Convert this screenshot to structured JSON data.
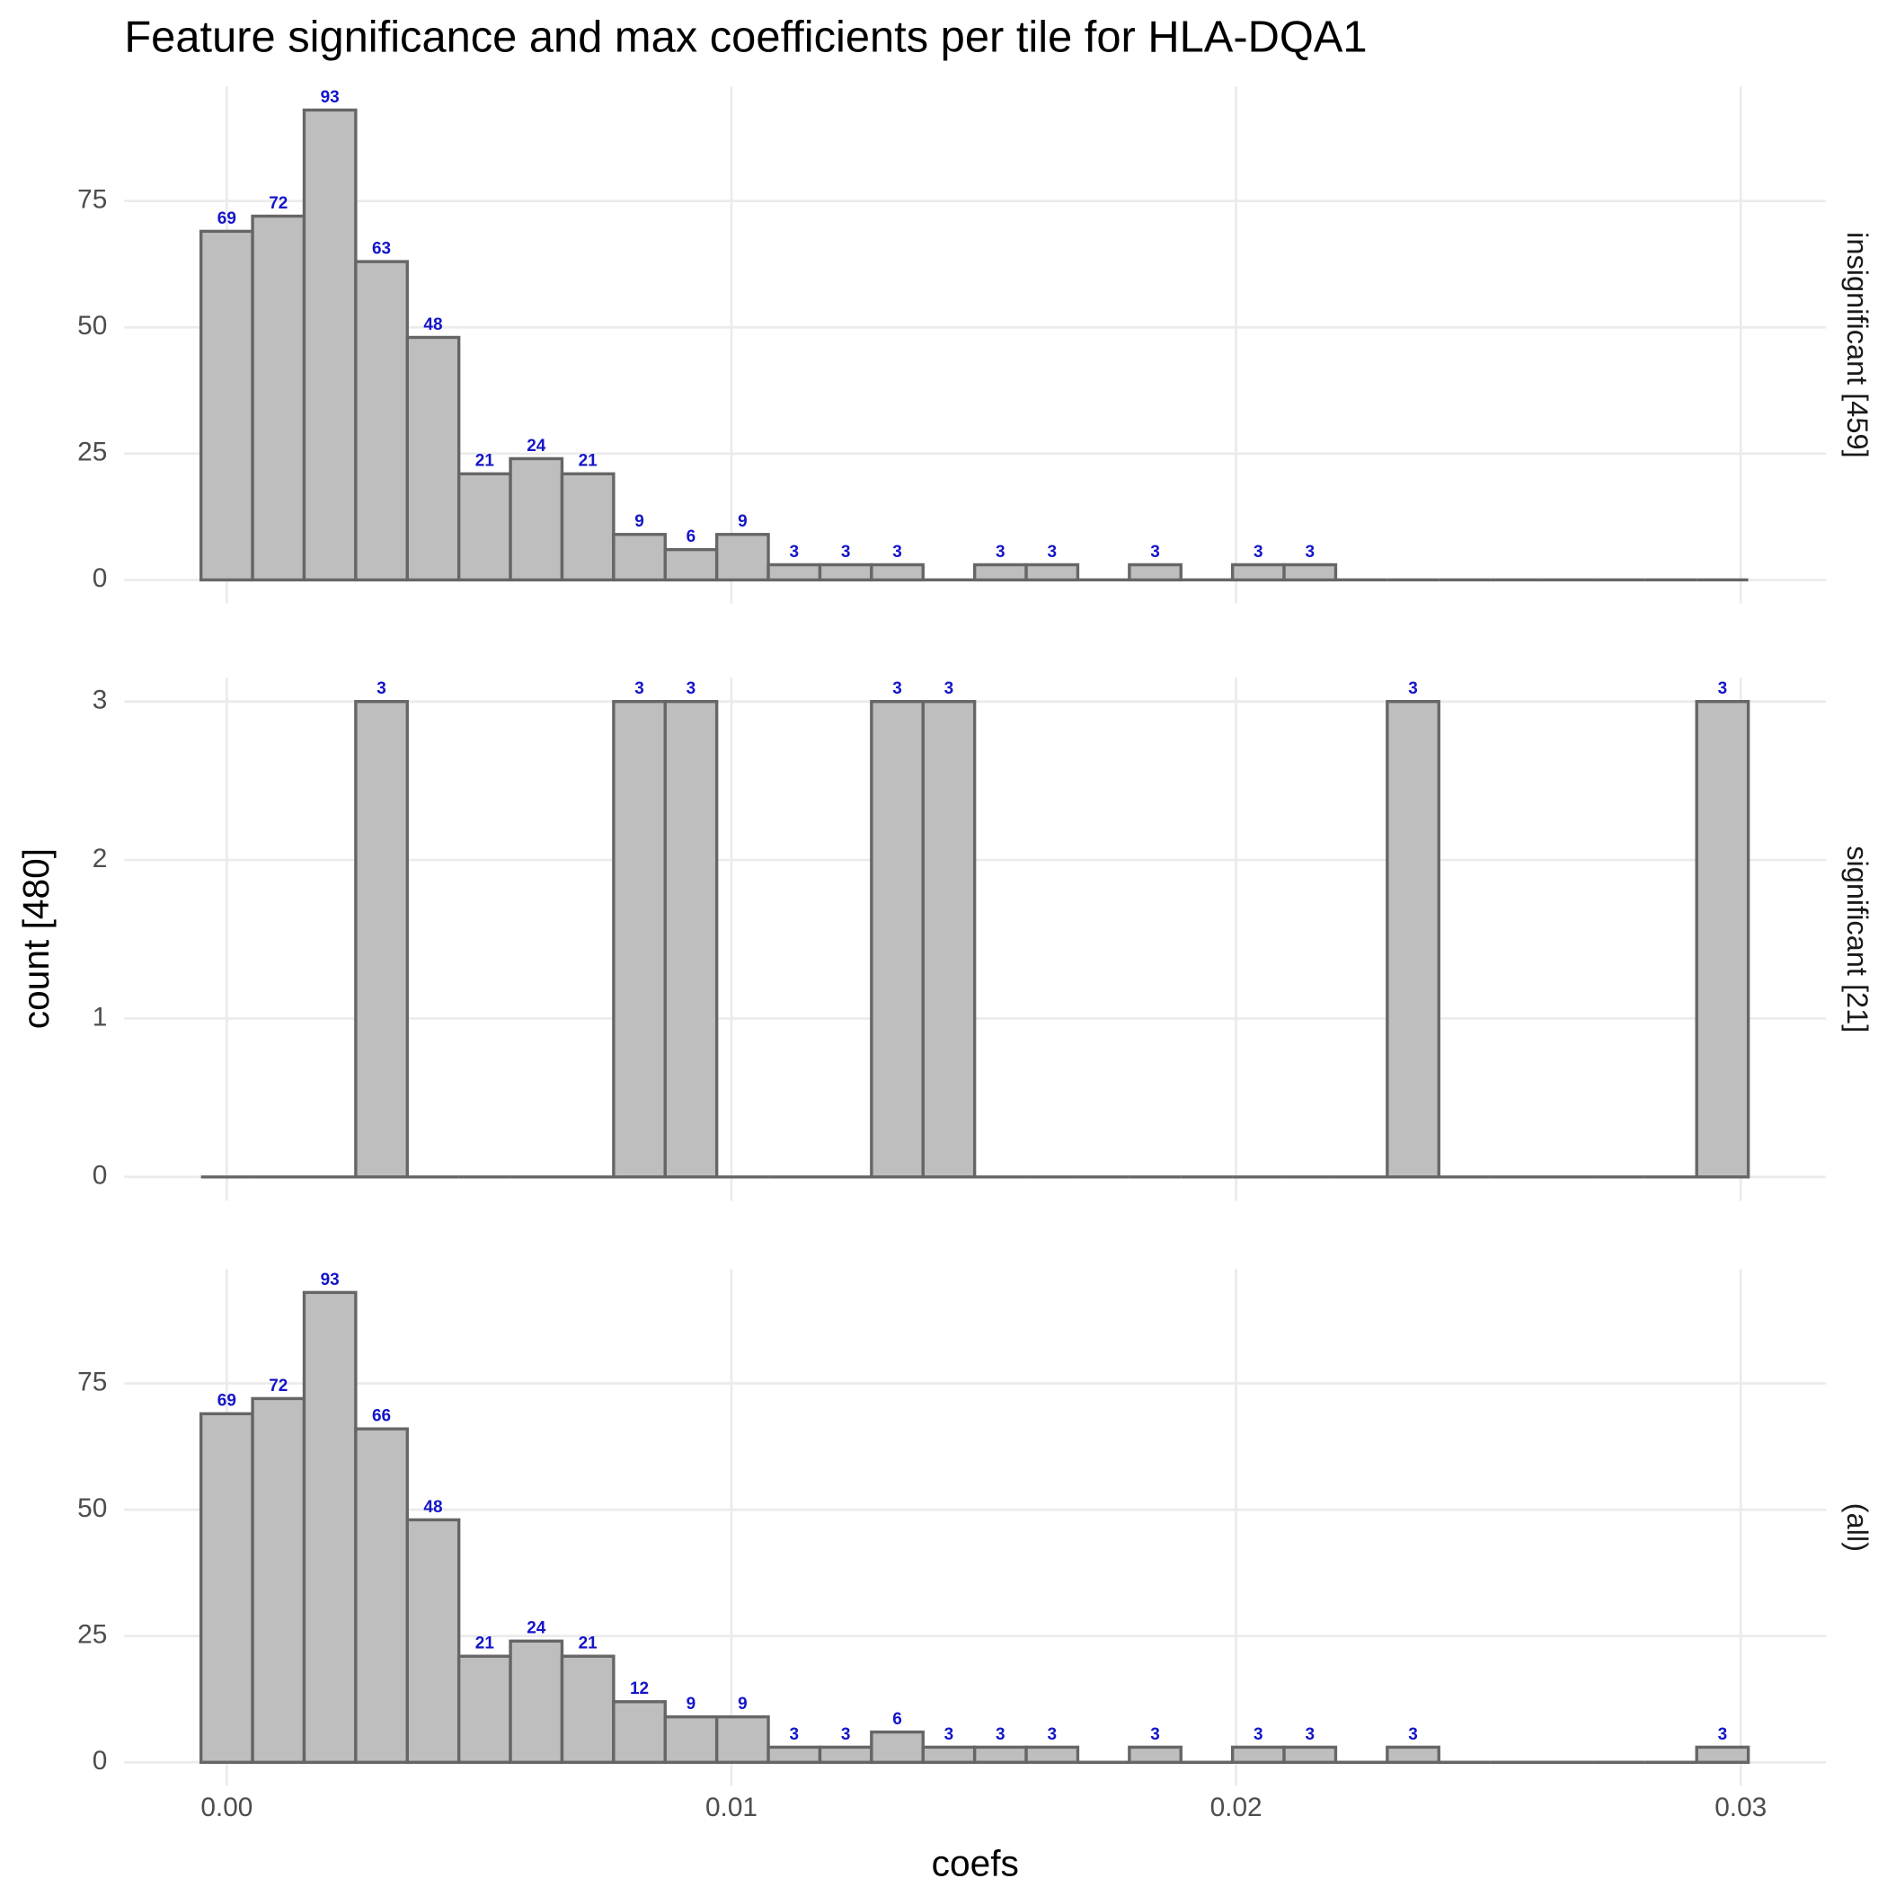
{
  "chart_data": {
    "type": "histogram",
    "title": "Feature significance and max coefficients per tile for HLA-DQA1",
    "x_label": "coefs",
    "y_label": "count [480]",
    "bins": [
      -0.000511,
      0.000511,
      0.001533,
      0.002555,
      0.003577,
      0.004599,
      0.005621,
      0.006643,
      0.007665,
      0.008687,
      0.009709,
      0.010731,
      0.011753,
      0.012775,
      0.013797,
      0.014819,
      0.015841,
      0.016863,
      0.017885,
      0.018907,
      0.019929,
      0.020951,
      0.021973,
      0.022995,
      0.024017,
      0.025039,
      0.026061,
      0.027083,
      0.028105,
      0.029127,
      0.030149
    ],
    "xlim": [
      -0.00203,
      0.03169
    ],
    "xticks": [
      {
        "value": 0,
        "label": "0.00"
      },
      {
        "value": 0.01,
        "label": "0.01"
      },
      {
        "value": 0.02,
        "label": "0.02"
      },
      {
        "value": 0.03,
        "label": "0.03"
      }
    ],
    "color": "#bebebe",
    "edge_color": "#666666",
    "label_color": "#1515c8",
    "grid": true,
    "facets": [
      {
        "label": "insignificant [459]",
        "ylim": [
          -4.65,
          97.65
        ],
        "yticks": [
          0,
          25,
          50,
          75
        ],
        "values": [
          69,
          72,
          93,
          63,
          48,
          21,
          24,
          21,
          9,
          6,
          9,
          3,
          3,
          3,
          0,
          3,
          3,
          0,
          3,
          0,
          3,
          3,
          0,
          0,
          0,
          0,
          0,
          0,
          0,
          0
        ]
      },
      {
        "label": "significant [21]",
        "ylim": [
          -0.15,
          3.15
        ],
        "yticks": [
          0,
          1,
          2,
          3
        ],
        "values": [
          0,
          0,
          0,
          3,
          0,
          0,
          0,
          0,
          3,
          3,
          0,
          0,
          0,
          3,
          3,
          0,
          0,
          0,
          0,
          0,
          0,
          0,
          0,
          3,
          0,
          0,
          0,
          0,
          0,
          3
        ]
      },
      {
        "label": "(all)",
        "ylim": [
          -4.65,
          97.65
        ],
        "yticks": [
          0,
          25,
          50,
          75
        ],
        "values": [
          69,
          72,
          93,
          66,
          48,
          21,
          24,
          21,
          12,
          9,
          9,
          3,
          3,
          6,
          3,
          3,
          3,
          0,
          3,
          0,
          3,
          3,
          0,
          3,
          0,
          0,
          0,
          0,
          0,
          3
        ]
      }
    ]
  }
}
